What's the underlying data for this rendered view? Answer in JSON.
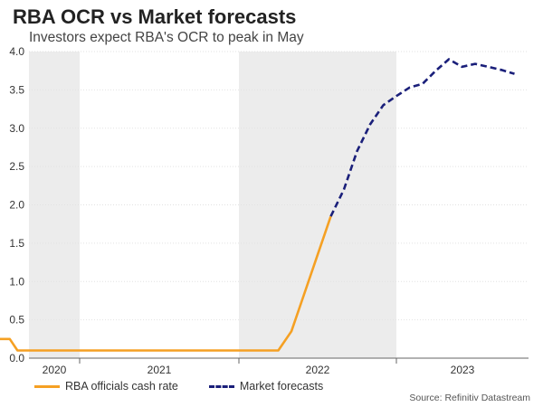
{
  "chart_data": {
    "type": "line",
    "title": "RBA OCR vs Market forecasts",
    "subtitle": "Investors expect RBA's OCR to peak in May",
    "source": "Source: Refinitiv Datastream",
    "ylim": [
      0,
      4.0
    ],
    "y_ticks": [
      "0.0",
      "0.5",
      "1.0",
      "1.5",
      "2.0",
      "2.5",
      "3.0",
      "3.5",
      "4.0"
    ],
    "x_ticks": [
      "2020",
      "2021",
      "2022",
      "2023"
    ],
    "grid": true,
    "shaded_years": [
      "2020",
      "2022"
    ],
    "colors": {
      "cash_rate": "#f5a023",
      "forecast": "#1a1f7a",
      "shade": "#ececec"
    },
    "series": [
      {
        "name": "RBA officials cash rate",
        "style": "solid",
        "points": [
          [
            "2020-02",
            0.25
          ],
          [
            "2020-03",
            0.25
          ],
          [
            "2020-04",
            0.25
          ],
          [
            "2020-05",
            0.1
          ],
          [
            "2021-06",
            0.1
          ],
          [
            "2022-04",
            0.1
          ],
          [
            "2022-05",
            0.35
          ],
          [
            "2022-06",
            0.85
          ],
          [
            "2022-07",
            1.35
          ],
          [
            "2022-08",
            1.85
          ]
        ]
      },
      {
        "name": "Market forecasts",
        "style": "dashed",
        "points": [
          [
            "2022-08",
            1.85
          ],
          [
            "2022-09",
            2.2
          ],
          [
            "2022-10",
            2.7
          ],
          [
            "2022-11",
            3.05
          ],
          [
            "2022-12",
            3.3
          ],
          [
            "2023-01",
            3.42
          ],
          [
            "2023-02",
            3.53
          ],
          [
            "2023-03",
            3.58
          ],
          [
            "2023-04",
            3.75
          ],
          [
            "2023-05",
            3.9
          ],
          [
            "2023-06",
            3.8
          ],
          [
            "2023-07",
            3.84
          ],
          [
            "2023-08",
            3.8
          ],
          [
            "2023-09",
            3.76
          ],
          [
            "2023-10",
            3.71
          ]
        ]
      }
    ]
  }
}
